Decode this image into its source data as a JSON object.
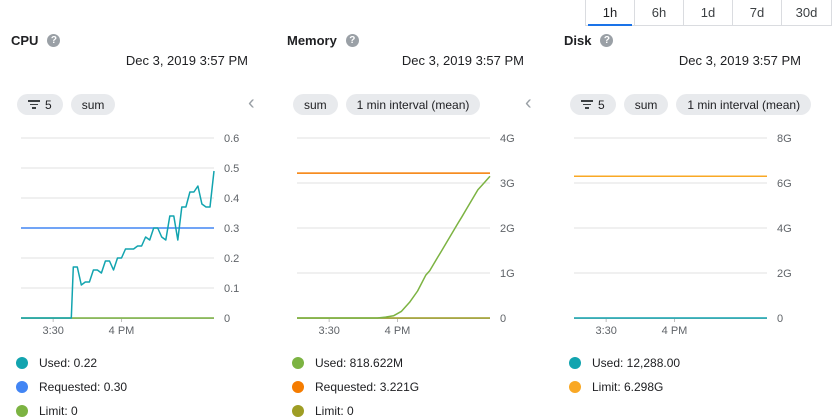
{
  "time_range": {
    "options": [
      "1h",
      "6h",
      "1d",
      "7d",
      "30d"
    ],
    "selected": "1h"
  },
  "colors": {
    "accent": "#1a73e8",
    "used": "#12a4af",
    "requested": "#4285f4",
    "limit_green": "#7cb342",
    "memory_used": "#7cb342",
    "memory_requested": "#f57c00",
    "memory_limit": "#9e9d24",
    "disk_used": "#12a4af",
    "disk_limit": "#f9a825"
  },
  "panels": [
    {
      "title": "CPU",
      "date": "Dec 3, 2019 3:57 PM",
      "chips": [
        {
          "icon": "filter-icon",
          "label": "5"
        },
        {
          "label": "sum"
        }
      ],
      "legend": [
        {
          "label": "Used: 0.22",
          "color": "#12a4af"
        },
        {
          "label": "Requested: 0.30",
          "color": "#4285f4"
        },
        {
          "label": "Limit: 0",
          "color": "#7cb342"
        }
      ]
    },
    {
      "title": "Memory",
      "date": "Dec 3, 2019 3:57 PM",
      "chips": [
        {
          "label": "sum"
        },
        {
          "label": "1 min interval (mean)"
        }
      ],
      "legend": [
        {
          "label": "Used: 818.622M",
          "color": "#7cb342"
        },
        {
          "label": "Requested: 3.221G",
          "color": "#f57c00"
        },
        {
          "label": "Limit: 0",
          "color": "#9e9d24"
        }
      ]
    },
    {
      "title": "Disk",
      "date": "Dec 3, 2019 3:57 PM",
      "chips": [
        {
          "icon": "filter-icon",
          "label": "5"
        },
        {
          "label": "sum"
        },
        {
          "label": "1 min interval (mean)"
        }
      ],
      "legend": [
        {
          "label": "Used: 12,288.00",
          "color": "#12a4af"
        },
        {
          "label": "Limit: 6.298G",
          "color": "#f9a825"
        }
      ]
    }
  ],
  "chart_data": [
    {
      "type": "line",
      "title": "CPU",
      "x_ticks": [
        "3:30",
        "4 PM"
      ],
      "x": [
        0,
        5,
        10,
        15,
        20,
        25,
        26,
        28,
        30,
        32,
        34,
        36,
        38,
        40,
        42,
        44,
        46,
        48,
        50,
        52,
        54,
        56,
        58,
        60,
        62,
        64,
        66,
        68,
        70,
        72,
        74,
        76,
        78,
        80,
        82,
        84,
        86,
        88,
        90,
        92,
        94,
        96
      ],
      "x_tick_positions": [
        16,
        50
      ],
      "ylim": [
        0,
        0.6
      ],
      "y_ticks": [
        0,
        0.1,
        0.2,
        0.3,
        0.4,
        0.5,
        0.6
      ],
      "series": [
        {
          "name": "Used",
          "color": "#12a4af",
          "values": [
            0,
            0,
            0,
            0,
            0,
            0,
            0.17,
            0.17,
            0.11,
            0.12,
            0.12,
            0.16,
            0.16,
            0.15,
            0.19,
            0.19,
            0.16,
            0.2,
            0.2,
            0.23,
            0.23,
            0.23,
            0.24,
            0.24,
            0.27,
            0.26,
            0.3,
            0.3,
            0.27,
            0.26,
            0.34,
            0.34,
            0.26,
            0.37,
            0.37,
            0.42,
            0.42,
            0.44,
            0.38,
            0.37,
            0.37,
            0.49
          ]
        },
        {
          "name": "Requested",
          "color": "#4285f4",
          "values": [
            0.3,
            0.3,
            0.3,
            0.3,
            0.3,
            0.3,
            0.3,
            0.3,
            0.3,
            0.3,
            0.3,
            0.3,
            0.3,
            0.3,
            0.3,
            0.3,
            0.3,
            0.3,
            0.3,
            0.3,
            0.3,
            0.3,
            0.3,
            0.3,
            0.3,
            0.3,
            0.3,
            0.3,
            0.3,
            0.3,
            0.3,
            0.3,
            0.3,
            0.3,
            0.3,
            0.3,
            0.3,
            0.3,
            0.3,
            0.3,
            0.3,
            0.3
          ]
        },
        {
          "name": "Limit",
          "color": "#7cb342",
          "values": [
            0,
            0,
            0,
            0,
            0,
            0,
            0,
            0,
            0,
            0,
            0,
            0,
            0,
            0,
            0,
            0,
            0,
            0,
            0,
            0,
            0,
            0,
            0,
            0,
            0,
            0,
            0,
            0,
            0,
            0,
            0,
            0,
            0,
            0,
            0,
            0,
            0,
            0,
            0,
            0,
            0,
            0
          ]
        }
      ]
    },
    {
      "type": "line",
      "title": "Memory",
      "x_ticks": [
        "3:30",
        "4 PM"
      ],
      "x": [
        0,
        10,
        20,
        30,
        40,
        44,
        48,
        52,
        56,
        60,
        64,
        66,
        68,
        70,
        72,
        74,
        76,
        78,
        80,
        82,
        84,
        86,
        88,
        90,
        92,
        94,
        96
      ],
      "x_tick_positions": [
        16,
        50
      ],
      "ylim": [
        0,
        4
      ],
      "y_ticks": [
        0,
        1,
        2,
        3,
        4
      ],
      "y_tick_labels": [
        "0",
        "1G",
        "2G",
        "3G",
        "4G"
      ],
      "series": [
        {
          "name": "Used",
          "color": "#7cb342",
          "values": [
            0,
            0,
            0,
            0,
            0,
            0.02,
            0.05,
            0.15,
            0.35,
            0.6,
            0.95,
            1.05,
            1.2,
            1.35,
            1.5,
            1.65,
            1.8,
            1.95,
            2.1,
            2.25,
            2.4,
            2.55,
            2.7,
            2.85,
            2.95,
            3.05,
            3.15
          ]
        },
        {
          "name": "Requested",
          "color": "#f57c00",
          "values": [
            3.22,
            3.22,
            3.22,
            3.22,
            3.22,
            3.22,
            3.22,
            3.22,
            3.22,
            3.22,
            3.22,
            3.22,
            3.22,
            3.22,
            3.22,
            3.22,
            3.22,
            3.22,
            3.22,
            3.22,
            3.22,
            3.22,
            3.22,
            3.22,
            3.22,
            3.22,
            3.22
          ]
        },
        {
          "name": "Limit",
          "color": "#9e9d24",
          "values": [
            0,
            0,
            0,
            0,
            0,
            0,
            0,
            0,
            0,
            0,
            0,
            0,
            0,
            0,
            0,
            0,
            0,
            0,
            0,
            0,
            0,
            0,
            0,
            0,
            0,
            0,
            0
          ]
        }
      ]
    },
    {
      "type": "line",
      "title": "Disk",
      "x_ticks": [
        "3:30",
        "4 PM"
      ],
      "x": [
        0,
        96
      ],
      "x_tick_positions": [
        16,
        50
      ],
      "ylim": [
        0,
        8
      ],
      "y_ticks": [
        0,
        2,
        4,
        6,
        8
      ],
      "y_tick_labels": [
        "0",
        "2G",
        "4G",
        "6G",
        "8G"
      ],
      "series": [
        {
          "name": "Used",
          "color": "#12a4af",
          "values": [
            0,
            0
          ]
        },
        {
          "name": "Limit",
          "color": "#f9a825",
          "values": [
            6.3,
            6.3
          ]
        }
      ]
    }
  ]
}
